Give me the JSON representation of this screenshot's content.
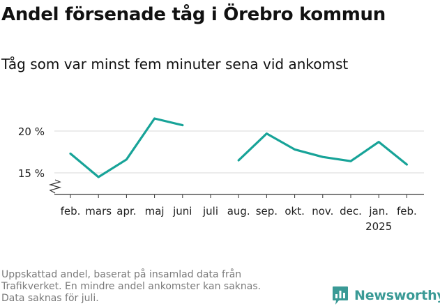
{
  "title": "Andel försenade tåg i Örebro kommun",
  "subtitle": "Tåg som var minst fem minuter sena vid ankomst",
  "footnote": [
    "Uppskattad andel, baserat på insamlad data från",
    "Trafikverket. En mindre andel ankomster kan saknas.",
    "Data saknas för juli."
  ],
  "brand": {
    "name": "Newsworthy",
    "color": "#3a9a96"
  },
  "chart_data": {
    "type": "line",
    "categories": [
      "feb.",
      "mars",
      "apr.",
      "maj",
      "juni",
      "juli",
      "aug.",
      "sep.",
      "okt.",
      "nov.",
      "dec.",
      "jan.",
      "feb."
    ],
    "year_label": "2025",
    "year_label_category_index": 11,
    "series": [
      {
        "color": "#17a398",
        "values": [
          17.3,
          14.5,
          16.6,
          21.5,
          20.7,
          null,
          16.5,
          19.7,
          17.8,
          16.9,
          16.4,
          18.7,
          16.0
        ]
      }
    ],
    "y_ticks": [
      15,
      20
    ],
    "y_tick_labels": [
      "15 %",
      "20 %"
    ],
    "ylim": [
      12.5,
      22.5
    ],
    "y_axis_break": true,
    "grid": true,
    "legend": "none"
  }
}
